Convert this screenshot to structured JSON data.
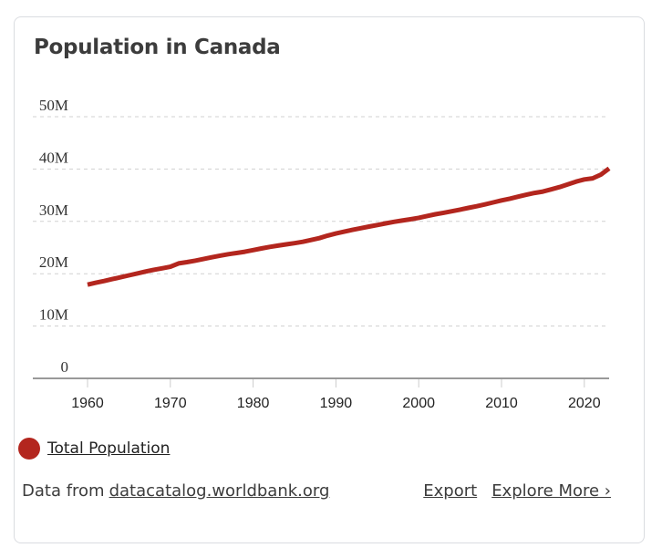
{
  "card": {
    "title": "Population in Canada",
    "legend": {
      "label": "Total Population",
      "color": "#b3261e"
    },
    "footer": {
      "source_prefix": "Data from",
      "source_link": "datacatalog.worldbank.org",
      "export_label": "Export",
      "explore_label": "Explore More ›"
    }
  },
  "chart_data": {
    "type": "line",
    "title": "Population in Canada",
    "xlabel": "",
    "ylabel": "",
    "xlim": [
      1953.5,
      2023
    ],
    "ylim": [
      0,
      50000000
    ],
    "grid": true,
    "legend_position": "bottom-left",
    "x_ticks": [
      1960,
      1970,
      1980,
      1990,
      2000,
      2010,
      2020
    ],
    "x_tick_labels": [
      "1960",
      "1970",
      "1980",
      "1990",
      "2000",
      "2010",
      "2020"
    ],
    "y_ticks": [
      0,
      10000000,
      20000000,
      30000000,
      40000000,
      50000000
    ],
    "y_tick_labels": [
      "0",
      "10M",
      "20M",
      "30M",
      "40M",
      "50M"
    ],
    "series": [
      {
        "name": "Total Population",
        "color": "#b3261e",
        "x": [
          1960,
          1961,
          1962,
          1963,
          1964,
          1965,
          1966,
          1967,
          1968,
          1969,
          1970,
          1971,
          1972,
          1973,
          1974,
          1975,
          1976,
          1977,
          1978,
          1979,
          1980,
          1981,
          1982,
          1983,
          1984,
          1985,
          1986,
          1987,
          1988,
          1989,
          1990,
          1991,
          1992,
          1993,
          1994,
          1995,
          1996,
          1997,
          1998,
          1999,
          2000,
          2001,
          2002,
          2003,
          2004,
          2005,
          2006,
          2007,
          2008,
          2009,
          2010,
          2011,
          2012,
          2013,
          2014,
          2015,
          2016,
          2017,
          2018,
          2019,
          2020,
          2021,
          2022,
          2023
        ],
        "values": [
          17909009,
          18271000,
          18614000,
          18964000,
          19325000,
          19678000,
          20048000,
          20412000,
          20744000,
          21028000,
          21324000,
          21962032,
          22218463,
          22491777,
          22807969,
          23143275,
          23449808,
          23725843,
          23963203,
          24201544,
          24515667,
          24819915,
          25116942,
          25366451,
          25607053,
          25842116,
          26100278,
          26446601,
          26791747,
          27281795,
          27691138,
          28037420,
          28371264,
          28684764,
          29000663,
          29302311,
          29610218,
          29905948,
          30155173,
          30401286,
          30685730,
          31020902,
          31360079,
          31644028,
          31940655,
          32243753,
          32571174,
          32889025,
          33247118,
          33628895,
          34004889,
          34339328,
          34714222,
          35082954,
          35437435,
          35702908,
          36109487,
          36545236,
          37065084,
          37601230,
          38007166,
          38226498,
          38929902,
          40097761
        ]
      }
    ]
  }
}
